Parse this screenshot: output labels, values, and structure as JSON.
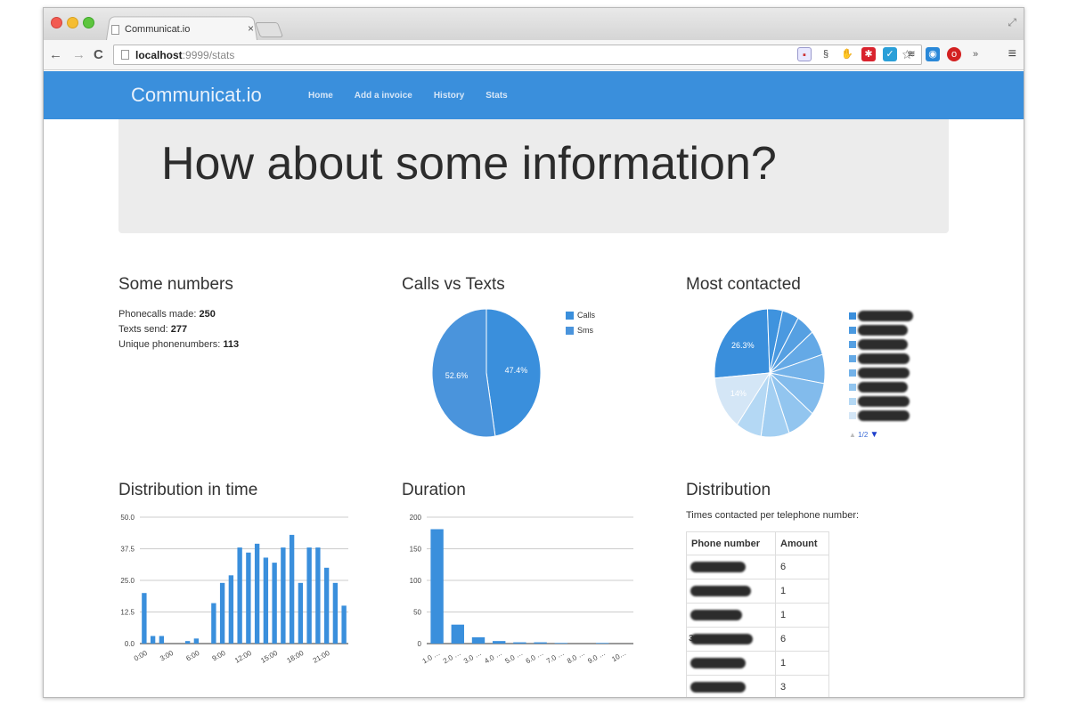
{
  "browser": {
    "tab_title": "Communicat.io",
    "tab_close": "×",
    "url_host": "localhost",
    "url_rest": ":9999/stats",
    "back": "←",
    "forward": "→",
    "reload": "C",
    "menu": "≡",
    "overflow": "»"
  },
  "site": {
    "brand": "Communicat.io",
    "nav": [
      "Home",
      "Add a invoice",
      "History",
      "Stats"
    ],
    "headline": "How about some information?"
  },
  "numbers": {
    "title": "Some numbers",
    "calls_label": "Phonecalls made:",
    "calls_value": "250",
    "texts_label": "Texts send:",
    "texts_value": "277",
    "unique_label": "Unique phonenumbers:",
    "unique_value": "113"
  },
  "titles": {
    "calls_vs_texts": "Calls vs Texts",
    "most_contacted": "Most contacted",
    "distribution_time": "Distribution in time",
    "duration": "Duration",
    "distribution": "Distribution"
  },
  "most_contacted_pager": "1/2",
  "distribution": {
    "caption": "Times contacted per telephone number:",
    "col_phone": "Phone number",
    "col_amount": "Amount",
    "amounts": [
      "6",
      "1",
      "1",
      "6",
      "1",
      "3"
    ],
    "stray_prefix": "3"
  },
  "colors": {
    "navbar": "#3a8fdc",
    "series_blue": "#3a8fdc",
    "sms_blue": "#4a94dc"
  },
  "chart_data": [
    {
      "type": "pie",
      "labels": [
        "Calls",
        "Sms"
      ],
      "values": [
        47.4,
        52.6
      ],
      "slice_labels": [
        "47.4%",
        "52.6%"
      ],
      "colors": [
        "#3a8fdc",
        "#4a94dc"
      ],
      "legend": "right"
    },
    {
      "type": "pie",
      "values": [
        26.3,
        4.5,
        5.0,
        5.5,
        6.5,
        7.5,
        8.5,
        8.5,
        8.5,
        7.7,
        14.0
      ],
      "slice_labels": [
        "26.3%",
        "",
        "",
        "",
        "",
        "",
        "",
        "",
        "",
        "",
        "14%"
      ],
      "colors": [
        "#3a8fdc",
        "#3f93de",
        "#4a99e0",
        "#56a0e2",
        "#64a9e6",
        "#73b2e9",
        "#82bbec",
        "#92c5ef",
        "#a3cff2",
        "#b4d8f4",
        "#d4e6f6"
      ],
      "legend": "right",
      "legend_colors": [
        "#3a8fdc",
        "#4a99e0",
        "#56a0e2",
        "#64a9e6",
        "#73b2e9",
        "#92c5ef",
        "#b4d8f4",
        "#d4e6f6"
      ]
    },
    {
      "type": "bar",
      "categories": [
        "0:00",
        "1:00",
        "2:00",
        "3:00",
        "4:00",
        "5:00",
        "6:00",
        "7:00",
        "8:00",
        "9:00",
        "10:00",
        "11:00",
        "12:00",
        "13:00",
        "14:00",
        "15:00",
        "16:00",
        "17:00",
        "18:00",
        "19:00",
        "20:00",
        "21:00",
        "22:00",
        "23:00"
      ],
      "values": [
        20,
        3,
        3,
        0,
        0,
        1,
        2,
        0,
        16,
        24,
        27,
        38,
        36,
        39.5,
        34,
        32,
        38,
        43,
        24,
        38,
        38,
        30,
        24,
        15
      ],
      "tick_labels": [
        "0:00",
        "3:00",
        "6:00",
        "9:00",
        "12:00",
        "15:00",
        "18:00",
        "21:00"
      ],
      "y_ticks": [
        "0.0",
        "12.5",
        "25.0",
        "37.5",
        "50.0"
      ],
      "ylim": [
        0,
        50
      ],
      "grid": true
    },
    {
      "type": "bar",
      "categories": [
        "1.0 …",
        "2.0 …",
        "3.0 …",
        "4.0 …",
        "5.0 …",
        "6.0 …",
        "7.0 …",
        "8.0 …",
        "9.0 …",
        "10…"
      ],
      "values": [
        181,
        30,
        10,
        4,
        2,
        2,
        1,
        0,
        1,
        0
      ],
      "y_ticks": [
        "0",
        "50",
        "100",
        "150",
        "200"
      ],
      "ylim": [
        0,
        200
      ],
      "grid": true
    }
  ]
}
